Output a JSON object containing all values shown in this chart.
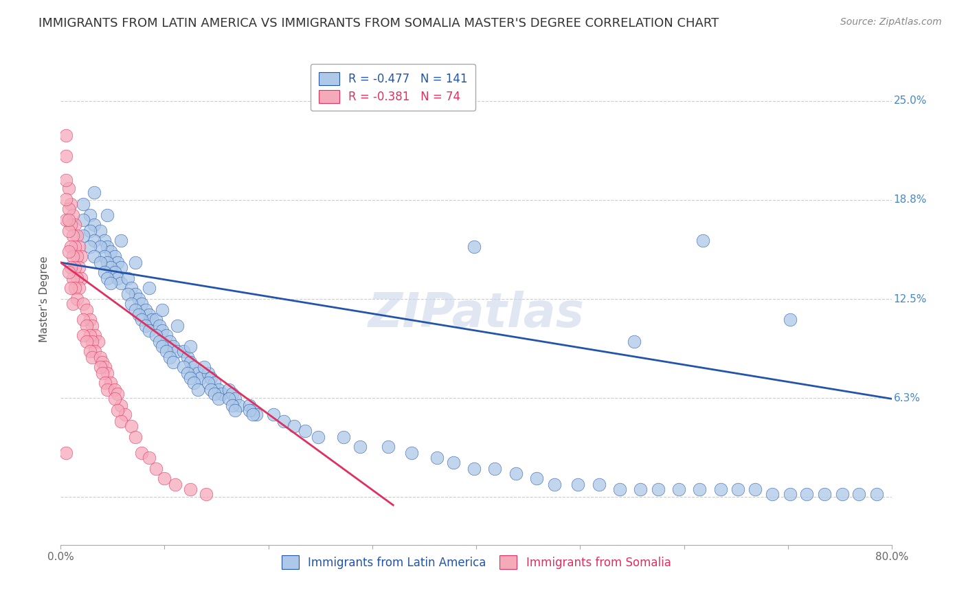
{
  "title": "IMMIGRANTS FROM LATIN AMERICA VS IMMIGRANTS FROM SOMALIA MASTER'S DEGREE CORRELATION CHART",
  "source": "Source: ZipAtlas.com",
  "ylabel": "Master's Degree",
  "xlim": [
    0.0,
    0.8
  ],
  "ylim": [
    -0.03,
    0.28
  ],
  "legend_blue_R": "-0.477",
  "legend_blue_N": "141",
  "legend_pink_R": "-0.381",
  "legend_pink_N": "74",
  "legend_label_blue": "Immigrants from Latin America",
  "legend_label_pink": "Immigrants from Somalia",
  "blue_color": "#adc8e8",
  "pink_color": "#f5aaba",
  "line_blue_color": "#2255aa",
  "line_pink_color": "#e03060",
  "watermark": "ZIPatlas",
  "blue_scatter_x": [
    0.022,
    0.028,
    0.032,
    0.038,
    0.042,
    0.045,
    0.048,
    0.052,
    0.055,
    0.058,
    0.022,
    0.028,
    0.032,
    0.038,
    0.042,
    0.045,
    0.048,
    0.052,
    0.055,
    0.058,
    0.022,
    0.028,
    0.032,
    0.038,
    0.042,
    0.045,
    0.048,
    0.065,
    0.068,
    0.072,
    0.075,
    0.078,
    0.082,
    0.085,
    0.088,
    0.065,
    0.068,
    0.072,
    0.075,
    0.078,
    0.082,
    0.085,
    0.092,
    0.095,
    0.098,
    0.102,
    0.105,
    0.108,
    0.112,
    0.092,
    0.095,
    0.098,
    0.102,
    0.105,
    0.108,
    0.118,
    0.122,
    0.125,
    0.128,
    0.132,
    0.135,
    0.118,
    0.122,
    0.125,
    0.128,
    0.132,
    0.142,
    0.145,
    0.148,
    0.152,
    0.155,
    0.142,
    0.145,
    0.148,
    0.152,
    0.162,
    0.165,
    0.168,
    0.172,
    0.162,
    0.165,
    0.168,
    0.182,
    0.185,
    0.188,
    0.182,
    0.185,
    0.205,
    0.215,
    0.225,
    0.235,
    0.248,
    0.272,
    0.288,
    0.315,
    0.338,
    0.362,
    0.378,
    0.398,
    0.418,
    0.438,
    0.458,
    0.475,
    0.498,
    0.518,
    0.538,
    0.558,
    0.575,
    0.595,
    0.615,
    0.635,
    0.652,
    0.668,
    0.685,
    0.702,
    0.718,
    0.735,
    0.752,
    0.768,
    0.785,
    0.032,
    0.045,
    0.058,
    0.072,
    0.085,
    0.098,
    0.112,
    0.125,
    0.138,
    0.398,
    0.552,
    0.618,
    0.702
  ],
  "blue_scatter_y": [
    0.185,
    0.178,
    0.172,
    0.168,
    0.162,
    0.158,
    0.155,
    0.152,
    0.148,
    0.145,
    0.175,
    0.168,
    0.162,
    0.158,
    0.152,
    0.148,
    0.145,
    0.142,
    0.138,
    0.135,
    0.165,
    0.158,
    0.152,
    0.148,
    0.142,
    0.138,
    0.135,
    0.138,
    0.132,
    0.128,
    0.125,
    0.122,
    0.118,
    0.115,
    0.112,
    0.128,
    0.122,
    0.118,
    0.115,
    0.112,
    0.108,
    0.105,
    0.112,
    0.108,
    0.105,
    0.102,
    0.098,
    0.095,
    0.092,
    0.102,
    0.098,
    0.095,
    0.092,
    0.088,
    0.085,
    0.092,
    0.088,
    0.085,
    0.082,
    0.078,
    0.075,
    0.082,
    0.078,
    0.075,
    0.072,
    0.068,
    0.078,
    0.075,
    0.072,
    0.068,
    0.065,
    0.072,
    0.068,
    0.065,
    0.062,
    0.068,
    0.065,
    0.062,
    0.058,
    0.062,
    0.058,
    0.055,
    0.058,
    0.055,
    0.052,
    0.055,
    0.052,
    0.052,
    0.048,
    0.045,
    0.042,
    0.038,
    0.038,
    0.032,
    0.032,
    0.028,
    0.025,
    0.022,
    0.018,
    0.018,
    0.015,
    0.012,
    0.008,
    0.008,
    0.008,
    0.005,
    0.005,
    0.005,
    0.005,
    0.005,
    0.005,
    0.005,
    0.005,
    0.002,
    0.002,
    0.002,
    0.002,
    0.002,
    0.002,
    0.002,
    0.192,
    0.178,
    0.162,
    0.148,
    0.132,
    0.118,
    0.108,
    0.095,
    0.082,
    0.158,
    0.098,
    0.162,
    0.112
  ],
  "pink_scatter_x": [
    0.005,
    0.008,
    0.01,
    0.012,
    0.014,
    0.016,
    0.018,
    0.02,
    0.005,
    0.008,
    0.01,
    0.012,
    0.014,
    0.016,
    0.018,
    0.02,
    0.005,
    0.008,
    0.01,
    0.012,
    0.014,
    0.016,
    0.018,
    0.005,
    0.008,
    0.01,
    0.012,
    0.014,
    0.016,
    0.005,
    0.008,
    0.01,
    0.012,
    0.022,
    0.025,
    0.028,
    0.03,
    0.033,
    0.036,
    0.022,
    0.025,
    0.028,
    0.03,
    0.033,
    0.022,
    0.025,
    0.028,
    0.03,
    0.038,
    0.04,
    0.043,
    0.045,
    0.048,
    0.038,
    0.04,
    0.043,
    0.045,
    0.052,
    0.055,
    0.058,
    0.062,
    0.052,
    0.055,
    0.058,
    0.068,
    0.072,
    0.078,
    0.085,
    0.092,
    0.1,
    0.11,
    0.125,
    0.14,
    0.008,
    0.005
  ],
  "pink_scatter_y": [
    0.228,
    0.195,
    0.185,
    0.178,
    0.172,
    0.165,
    0.158,
    0.152,
    0.215,
    0.182,
    0.172,
    0.165,
    0.158,
    0.152,
    0.145,
    0.138,
    0.2,
    0.168,
    0.158,
    0.152,
    0.145,
    0.138,
    0.132,
    0.188,
    0.155,
    0.145,
    0.138,
    0.132,
    0.125,
    0.175,
    0.142,
    0.132,
    0.122,
    0.122,
    0.118,
    0.112,
    0.108,
    0.102,
    0.098,
    0.112,
    0.108,
    0.102,
    0.098,
    0.092,
    0.102,
    0.098,
    0.092,
    0.088,
    0.088,
    0.085,
    0.082,
    0.078,
    0.072,
    0.082,
    0.078,
    0.072,
    0.068,
    0.068,
    0.065,
    0.058,
    0.052,
    0.062,
    0.055,
    0.048,
    0.045,
    0.038,
    0.028,
    0.025,
    0.018,
    0.012,
    0.008,
    0.005,
    0.002,
    0.175,
    0.028
  ],
  "blue_line_x": [
    0.0,
    0.8
  ],
  "blue_line_y": [
    0.148,
    0.062
  ],
  "pink_line_x": [
    0.0,
    0.32
  ],
  "pink_line_y": [
    0.148,
    -0.005
  ],
  "bg_color": "#ffffff",
  "grid_color": "#cccccc",
  "title_color": "#333333",
  "right_label_color": "#4488cc",
  "ytick_positions": [
    0.0,
    0.0625,
    0.125,
    0.1875,
    0.25
  ],
  "right_tick_labels": [
    "",
    "6.3%",
    "12.5%",
    "18.8%",
    "25.0%"
  ],
  "xtick_positions": [
    0.0,
    0.1,
    0.2,
    0.3,
    0.4,
    0.5,
    0.6,
    0.7,
    0.8
  ],
  "xtick_labels_show": [
    "0.0%",
    "",
    "",
    "",
    "",
    "",
    "",
    "",
    "80.0%"
  ],
  "font_size_title": 13,
  "font_size_ticks": 11,
  "font_size_legend": 12,
  "font_size_source": 10,
  "font_size_ylabel": 11,
  "font_size_watermark": 50
}
